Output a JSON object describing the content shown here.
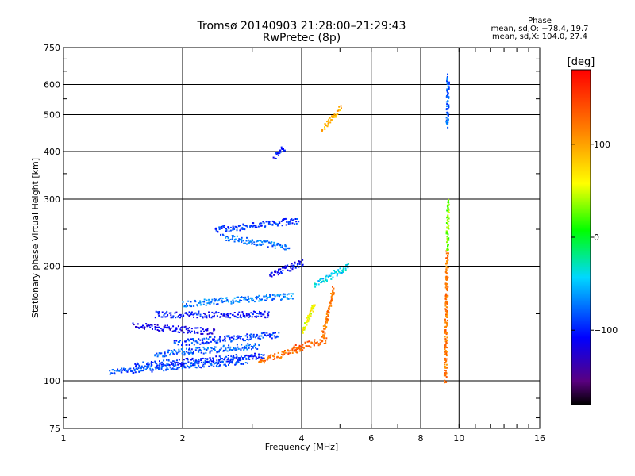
{
  "header": {
    "title_line1": "Tromsø 20140903 21:28:00–21:29:43",
    "title_line2": "RwPretec (8p)"
  },
  "phase_info": {
    "title": "Phase",
    "line_o": "mean, sd,O: −78.4, 19.7",
    "line_x": "mean, sd,X: 104.0, 27.4"
  },
  "colors": {
    "background": "#ffffff",
    "grid": "#000000"
  },
  "chart_data": {
    "type": "scatter",
    "title": "Tromsø 20140903 21:28:00–21:29:43",
    "subtitle": "RwPretec (8p)",
    "xlabel": "Frequency [MHz]",
    "ylabel": "Stationary phase Virtual Height [km]",
    "xscale": "log",
    "yscale": "log",
    "xlim": [
      1,
      16
    ],
    "ylim": [
      75,
      750
    ],
    "xticks": [
      1,
      2,
      4,
      6,
      8,
      10,
      16
    ],
    "xtick_labels": [
      "1",
      "2",
      "4",
      "6",
      "8",
      "10",
      "16"
    ],
    "yticks": [
      75,
      100,
      200,
      300,
      400,
      500,
      600,
      750
    ],
    "ytick_labels": [
      "75",
      "100",
      "200",
      "300",
      "400",
      "500",
      "600",
      "750"
    ],
    "grid": true,
    "colorbar": {
      "label": "[deg]",
      "ticks": [
        -100,
        0,
        100
      ],
      "tick_labels": [
        "−100",
        "0",
        "100"
      ],
      "range": [
        -180,
        180
      ],
      "colormap": "rainbow"
    },
    "traces": [
      {
        "f0": 1.3,
        "f1": 2.9,
        "h0": 106,
        "h1": 113,
        "phase": -85
      },
      {
        "f0": 1.5,
        "f1": 3.2,
        "h0": 110,
        "h1": 117,
        "phase": -95
      },
      {
        "f0": 1.7,
        "f1": 3.1,
        "h0": 118,
        "h1": 124,
        "phase": -80
      },
      {
        "f0": 1.9,
        "f1": 3.5,
        "h0": 126,
        "h1": 133,
        "phase": -90
      },
      {
        "f0": 1.5,
        "f1": 2.4,
        "h0": 140,
        "h1": 135,
        "phase": -115
      },
      {
        "f0": 1.7,
        "f1": 3.3,
        "h0": 150,
        "h1": 150,
        "phase": -105
      },
      {
        "f0": 2.0,
        "f1": 3.8,
        "h0": 160,
        "h1": 168,
        "phase": -70
      },
      {
        "f0": 2.4,
        "f1": 3.9,
        "h0": 250,
        "h1": 265,
        "phase": -95
      },
      {
        "f0": 2.5,
        "f1": 3.7,
        "h0": 240,
        "h1": 225,
        "phase": -75
      },
      {
        "f0": 3.3,
        "f1": 4.0,
        "h0": 190,
        "h1": 205,
        "phase": -110
      },
      {
        "f0": 3.1,
        "f1": 4.0,
        "h0": 113,
        "h1": 122,
        "phase": 125
      },
      {
        "f0": 3.8,
        "f1": 4.6,
        "h0": 123,
        "h1": 128,
        "phase": 135
      },
      {
        "f0": 4.5,
        "f1": 4.8,
        "h0": 130,
        "h1": 175,
        "phase": 120
      },
      {
        "f0": 4.0,
        "f1": 4.3,
        "h0": 135,
        "h1": 160,
        "phase": 60
      },
      {
        "f0": 4.3,
        "f1": 5.2,
        "h0": 180,
        "h1": 200,
        "phase": -45
      },
      {
        "f0": 4.5,
        "f1": 5.0,
        "h0": 460,
        "h1": 520,
        "phase": 90
      },
      {
        "f0": 3.4,
        "f1": 3.6,
        "h0": 390,
        "h1": 410,
        "phase": -100
      },
      {
        "f0": 9.2,
        "f1": 9.3,
        "h0": 100,
        "h1": 220,
        "phase": 120
      },
      {
        "f0": 9.3,
        "f1": 9.35,
        "h0": 220,
        "h1": 300,
        "phase": 30
      },
      {
        "f0": 9.3,
        "f1": 9.35,
        "h0": 470,
        "h1": 630,
        "phase": -80
      }
    ]
  }
}
